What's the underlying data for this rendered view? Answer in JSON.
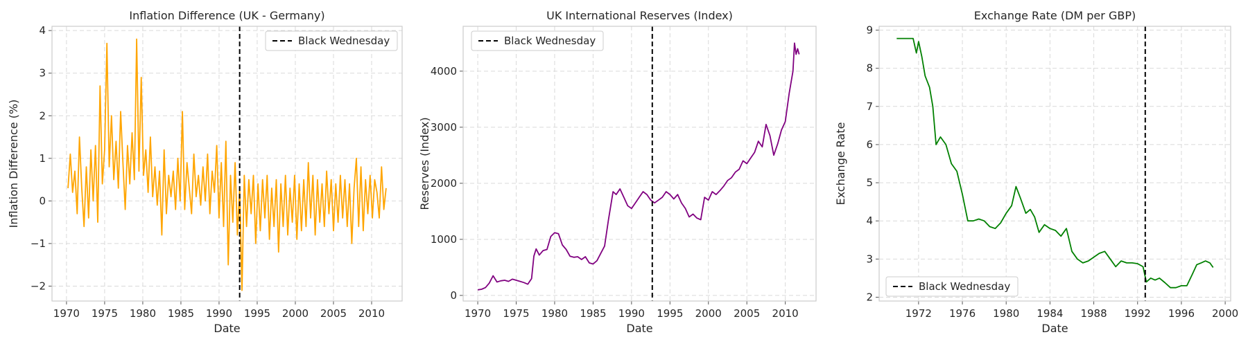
{
  "chart_data": [
    {
      "type": "line",
      "title": "Inflation Difference (UK - Germany)",
      "xlabel": "Date",
      "ylabel": "Inflation Difference (%)",
      "xlim": [
        1968.1,
        2014.0
      ],
      "ylim": [
        -2.35,
        4.1
      ],
      "xticks": [
        1970,
        1975,
        1980,
        1985,
        1990,
        1995,
        2000,
        2005,
        2010
      ],
      "yticks": [
        -2,
        -1,
        0,
        1,
        2,
        3,
        4
      ],
      "ytick_labels": [
        "−2",
        "−1",
        "0",
        "1",
        "2",
        "3",
        "4"
      ],
      "grid": true,
      "legend": {
        "position": "upper right",
        "entries": [
          "Black Wednesday"
        ]
      },
      "vline": {
        "x": 1992.7,
        "label": "Black Wednesday",
        "style": "dashed",
        "color": "#000000"
      },
      "series": [
        {
          "color": "#ffa500",
          "x": [
            1970.2,
            1970.5,
            1970.8,
            1971.1,
            1971.4,
            1971.7,
            1972.0,
            1972.3,
            1972.6,
            1972.9,
            1973.2,
            1973.5,
            1973.8,
            1974.1,
            1974.4,
            1974.7,
            1975.0,
            1975.3,
            1975.6,
            1975.9,
            1976.2,
            1976.5,
            1976.8,
            1977.1,
            1977.4,
            1977.7,
            1978.0,
            1978.3,
            1978.6,
            1978.9,
            1979.2,
            1979.5,
            1979.8,
            1980.1,
            1980.4,
            1980.7,
            1981.0,
            1981.3,
            1981.6,
            1981.9,
            1982.2,
            1982.5,
            1982.8,
            1983.1,
            1983.4,
            1983.7,
            1984.0,
            1984.3,
            1984.6,
            1984.9,
            1985.2,
            1985.5,
            1985.8,
            1986.1,
            1986.4,
            1986.7,
            1987.0,
            1987.3,
            1987.6,
            1987.9,
            1988.2,
            1988.5,
            1988.8,
            1989.1,
            1989.4,
            1989.7,
            1990.0,
            1990.3,
            1990.6,
            1990.9,
            1991.2,
            1991.5,
            1991.8,
            1992.1,
            1992.4,
            1992.7,
            1993.0,
            1993.3,
            1993.6,
            1993.9,
            1994.2,
            1994.5,
            1994.8,
            1995.1,
            1995.4,
            1995.7,
            1996.0,
            1996.3,
            1996.6,
            1996.9,
            1997.2,
            1997.5,
            1997.8,
            1998.1,
            1998.4,
            1998.7,
            1999.0,
            1999.3,
            1999.6,
            1999.9,
            2000.2,
            2000.5,
            2000.8,
            2001.1,
            2001.4,
            2001.7,
            2002.0,
            2002.3,
            2002.6,
            2002.9,
            2003.2,
            2003.5,
            2003.8,
            2004.1,
            2004.4,
            2004.7,
            2005.0,
            2005.3,
            2005.6,
            2005.9,
            2006.2,
            2006.5,
            2006.8,
            2007.1,
            2007.4,
            2007.7,
            2008.0,
            2008.3,
            2008.6,
            2008.9,
            2009.2,
            2009.5,
            2009.8,
            2010.1,
            2010.4,
            2010.7,
            2011.0,
            2011.3,
            2011.6,
            2011.9
          ],
          "y": [
            0.3,
            1.1,
            0.2,
            0.7,
            -0.3,
            1.5,
            0.3,
            -0.6,
            0.8,
            -0.4,
            1.2,
            0.0,
            1.3,
            -0.5,
            2.7,
            0.4,
            1.2,
            3.7,
            0.8,
            2.0,
            0.5,
            1.4,
            0.3,
            2.1,
            0.9,
            -0.2,
            1.3,
            0.4,
            1.6,
            0.5,
            3.8,
            0.7,
            2.9,
            0.6,
            1.2,
            0.2,
            1.5,
            0.1,
            0.8,
            -0.1,
            0.7,
            -0.8,
            1.2,
            -0.3,
            0.6,
            0.1,
            0.7,
            -0.2,
            1.0,
            0.0,
            2.1,
            -0.2,
            0.9,
            0.3,
            -0.3,
            1.1,
            0.1,
            0.6,
            -0.1,
            0.8,
            0.0,
            1.1,
            -0.3,
            0.7,
            0.2,
            1.3,
            -0.4,
            0.9,
            -0.6,
            1.4,
            -1.5,
            0.6,
            -0.5,
            0.9,
            -0.8,
            0.3,
            -2.1,
            0.6,
            -0.6,
            0.5,
            -0.3,
            0.6,
            -1.0,
            0.4,
            -0.7,
            0.5,
            -0.4,
            0.6,
            -0.9,
            0.3,
            -0.6,
            0.5,
            -1.2,
            0.4,
            -0.6,
            0.6,
            -0.8,
            0.3,
            -0.5,
            0.6,
            -0.9,
            0.4,
            -0.7,
            0.5,
            -0.6,
            0.9,
            -0.4,
            0.6,
            -0.8,
            0.5,
            -0.5,
            0.4,
            -0.6,
            0.7,
            -0.3,
            0.5,
            -0.7,
            0.4,
            -0.5,
            0.6,
            -0.4,
            0.5,
            -0.6,
            0.4,
            -1.0,
            0.3,
            1.0,
            -0.6,
            0.8,
            -0.7,
            0.5,
            -0.3,
            0.6,
            -0.4,
            0.5,
            0.2,
            -0.4,
            0.8,
            -0.2,
            0.3
          ]
        }
      ]
    },
    {
      "type": "line",
      "title": "UK International Reserves (Index)",
      "xlabel": "Date",
      "ylabel": "Reserves (Index)",
      "xlim": [
        1968.1,
        2014.0
      ],
      "ylim": [
        -100,
        4800
      ],
      "xticks": [
        1970,
        1975,
        1980,
        1985,
        1990,
        1995,
        2000,
        2005,
        2010
      ],
      "yticks": [
        0,
        1000,
        2000,
        3000,
        4000
      ],
      "ytick_labels": [
        "0",
        "1000",
        "2000",
        "3000",
        "4000"
      ],
      "grid": true,
      "legend": {
        "position": "upper left",
        "entries": [
          "Black Wednesday"
        ]
      },
      "vline": {
        "x": 1992.7,
        "label": "Black Wednesday",
        "style": "dashed",
        "color": "#000000"
      },
      "series": [
        {
          "color": "#800080",
          "x": [
            1970.0,
            1970.5,
            1971.0,
            1971.5,
            1972.0,
            1972.5,
            1973.0,
            1973.5,
            1974.0,
            1974.5,
            1975.0,
            1975.5,
            1976.0,
            1976.5,
            1977.0,
            1977.3,
            1977.6,
            1978.0,
            1978.5,
            1979.0,
            1979.5,
            1980.0,
            1980.5,
            1981.0,
            1981.5,
            1982.0,
            1982.5,
            1983.0,
            1983.5,
            1984.0,
            1984.5,
            1985.0,
            1985.5,
            1986.0,
            1986.5,
            1987.0,
            1987.3,
            1987.6,
            1988.0,
            1988.5,
            1989.0,
            1989.5,
            1990.0,
            1990.5,
            1991.0,
            1991.5,
            1992.0,
            1992.5,
            1993.0,
            1993.5,
            1994.0,
            1994.5,
            1995.0,
            1995.5,
            1996.0,
            1996.5,
            1997.0,
            1997.5,
            1998.0,
            1998.5,
            1999.0,
            1999.5,
            2000.0,
            2000.5,
            2001.0,
            2001.5,
            2002.0,
            2002.5,
            2003.0,
            2003.5,
            2004.0,
            2004.5,
            2005.0,
            2005.5,
            2006.0,
            2006.5,
            2007.0,
            2007.5,
            2008.0,
            2008.5,
            2009.0,
            2009.5,
            2010.0,
            2010.5,
            2011.0,
            2011.2,
            2011.4,
            2011.6,
            2011.8
          ],
          "y": [
            100,
            110,
            140,
            220,
            350,
            240,
            260,
            270,
            250,
            290,
            270,
            250,
            230,
            200,
            300,
            700,
            830,
            720,
            800,
            820,
            1050,
            1120,
            1100,
            900,
            820,
            700,
            680,
            690,
            640,
            690,
            580,
            560,
            620,
            750,
            880,
            1350,
            1600,
            1850,
            1800,
            1900,
            1750,
            1600,
            1550,
            1650,
            1750,
            1850,
            1800,
            1700,
            1650,
            1700,
            1750,
            1850,
            1800,
            1720,
            1800,
            1650,
            1550,
            1400,
            1450,
            1380,
            1350,
            1750,
            1700,
            1850,
            1800,
            1870,
            1950,
            2050,
            2100,
            2200,
            2250,
            2400,
            2350,
            2450,
            2550,
            2750,
            2650,
            3050,
            2850,
            2500,
            2700,
            2950,
            3100,
            3600,
            4000,
            4500,
            4300,
            4400,
            4300
          ]
        }
      ]
    },
    {
      "type": "line",
      "title": "Exchange Rate (DM per GBP)",
      "xlabel": "Date",
      "ylabel": "Exchange Rate",
      "xlim": [
        1968.4,
        2000.5
      ],
      "ylim": [
        1.9,
        9.1
      ],
      "xticks": [
        1972,
        1976,
        1980,
        1984,
        1988,
        1992,
        1996,
        2000
      ],
      "yticks": [
        2,
        3,
        4,
        5,
        6,
        7,
        8,
        9
      ],
      "ytick_labels": [
        "2",
        "3",
        "4",
        "5",
        "6",
        "7",
        "8",
        "9"
      ],
      "grid": true,
      "legend": {
        "position": "lower left",
        "entries": [
          "Black Wednesday"
        ]
      },
      "vline": {
        "x": 1992.7,
        "label": "Black Wednesday",
        "style": "dashed",
        "color": "#000000"
      },
      "series": [
        {
          "color": "#008000",
          "x": [
            1970.0,
            1970.5,
            1971.0,
            1971.5,
            1971.8,
            1972.0,
            1972.3,
            1972.6,
            1973.0,
            1973.3,
            1973.6,
            1974.0,
            1974.5,
            1975.0,
            1975.5,
            1976.0,
            1976.5,
            1977.0,
            1977.5,
            1978.0,
            1978.5,
            1979.0,
            1979.5,
            1980.0,
            1980.5,
            1980.9,
            1981.3,
            1981.8,
            1982.2,
            1982.6,
            1983.0,
            1983.5,
            1984.0,
            1984.5,
            1985.0,
            1985.5,
            1986.0,
            1986.5,
            1987.0,
            1987.5,
            1988.0,
            1988.5,
            1989.0,
            1989.5,
            1990.0,
            1990.5,
            1991.0,
            1991.5,
            1992.0,
            1992.5,
            1992.8,
            1993.2,
            1993.6,
            1994.0,
            1994.5,
            1995.0,
            1995.5,
            1996.0,
            1996.5,
            1997.0,
            1997.4,
            1997.8,
            1998.2,
            1998.6,
            1998.9
          ],
          "y": [
            8.78,
            8.78,
            8.78,
            8.78,
            8.4,
            8.7,
            8.3,
            7.8,
            7.5,
            7.0,
            6.0,
            6.2,
            6.0,
            5.5,
            5.3,
            4.7,
            4.0,
            4.0,
            4.05,
            4.0,
            3.85,
            3.8,
            3.95,
            4.2,
            4.4,
            4.9,
            4.6,
            4.2,
            4.3,
            4.1,
            3.7,
            3.9,
            3.8,
            3.75,
            3.6,
            3.8,
            3.2,
            3.0,
            2.9,
            2.95,
            3.05,
            3.15,
            3.2,
            3.0,
            2.8,
            2.95,
            2.9,
            2.9,
            2.88,
            2.8,
            2.4,
            2.5,
            2.45,
            2.5,
            2.38,
            2.25,
            2.25,
            2.3,
            2.3,
            2.6,
            2.85,
            2.9,
            2.95,
            2.9,
            2.78
          ]
        }
      ]
    }
  ]
}
